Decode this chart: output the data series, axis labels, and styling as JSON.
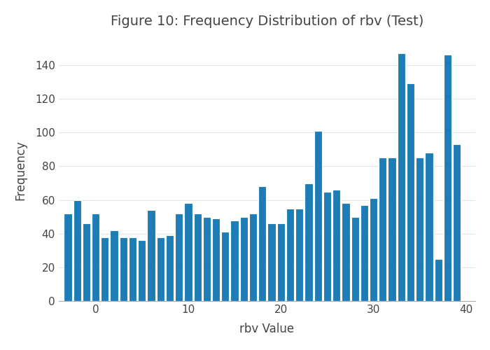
{
  "title": "Figure 10: Frequency Distribution of rbv (Test)",
  "xlabel": "rbv Value",
  "ylabel": "Frequency",
  "bar_color": "#1f7db5",
  "background_color": "#ffffff",
  "plot_bg_color": "#ffffff",
  "grid_color": "#e5e5e5",
  "values": [
    52,
    60,
    46,
    52,
    38,
    42,
    38,
    38,
    36,
    54,
    38,
    39,
    52,
    58,
    52,
    50,
    49,
    41,
    48,
    50,
    52,
    68,
    46,
    46,
    55,
    55,
    70,
    101,
    65,
    66,
    58,
    50,
    57,
    61,
    85,
    85,
    147,
    129,
    85,
    88,
    25,
    146,
    93
  ],
  "x_start": -3,
  "x_step": 1,
  "ylim": [
    0,
    155
  ],
  "yticks": [
    0,
    20,
    40,
    60,
    80,
    100,
    120,
    140
  ],
  "xticks": [
    0,
    10,
    20,
    30,
    40
  ],
  "xlim": [
    -4,
    41
  ],
  "title_fontsize": 14,
  "label_fontsize": 12,
  "tick_fontsize": 11,
  "bar_width": 0.85
}
